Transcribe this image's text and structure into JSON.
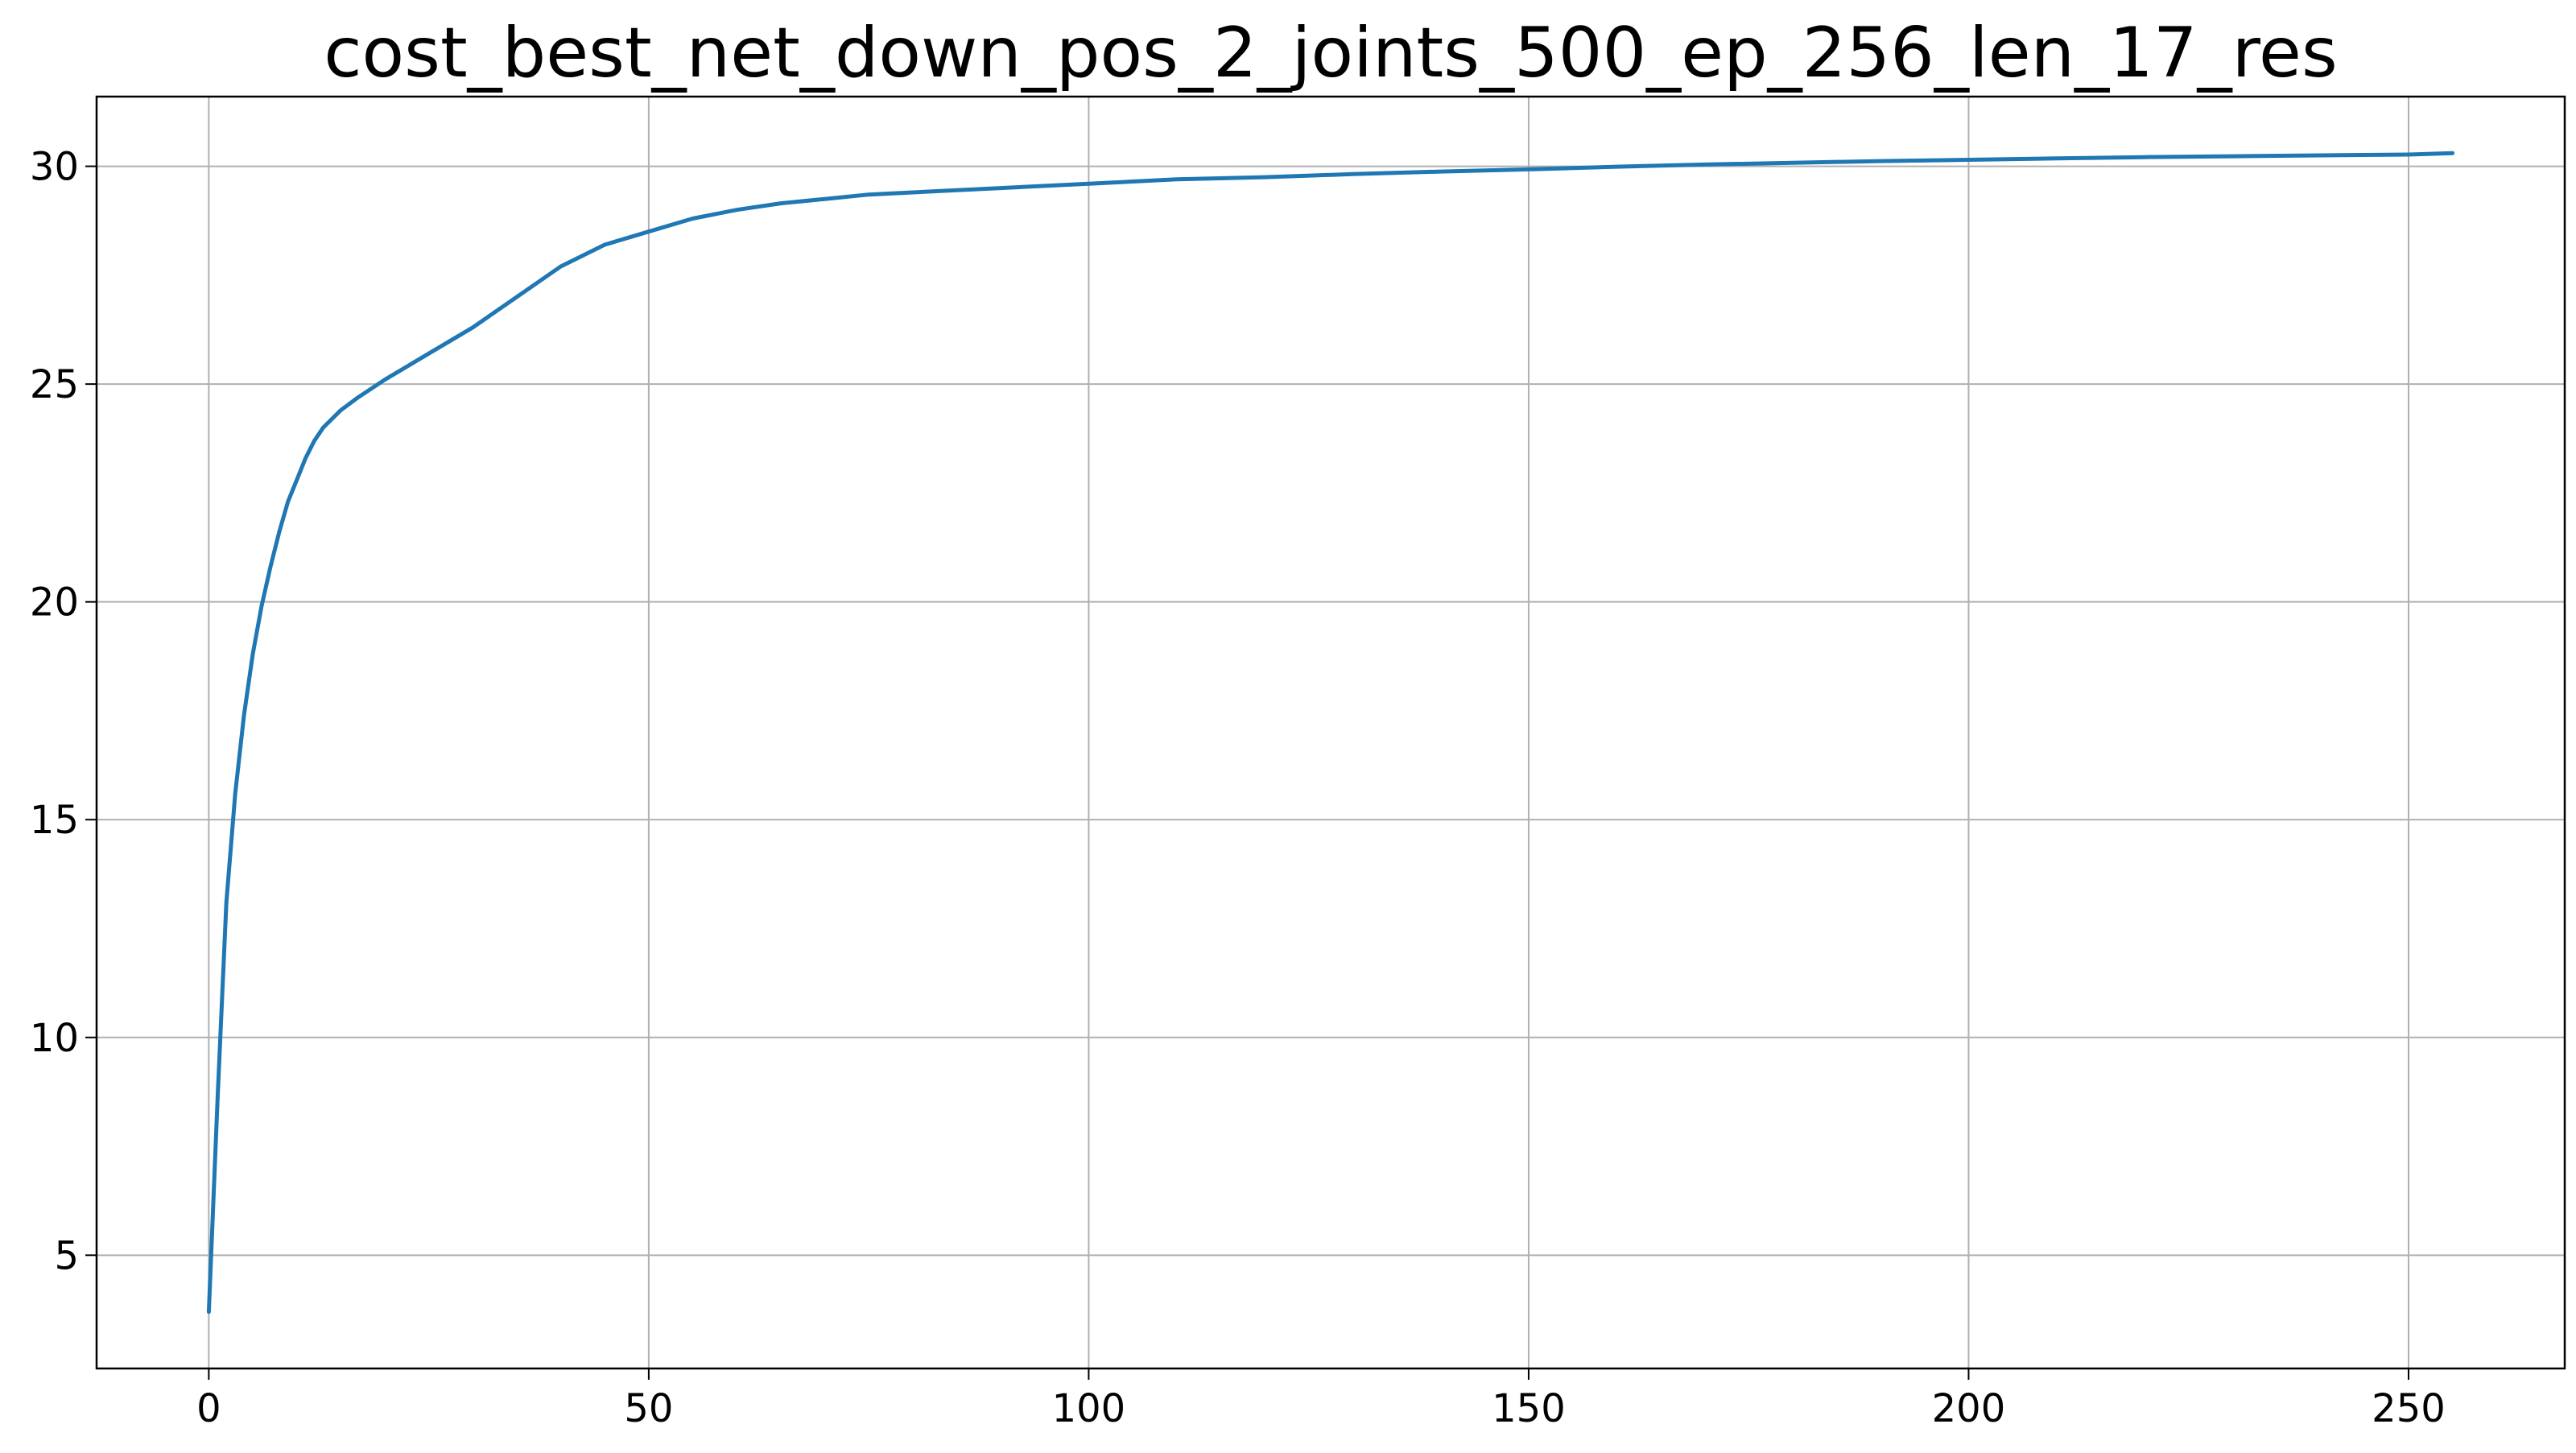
{
  "chart_data": {
    "type": "line",
    "title": "cost_best_net_down_pos_2_joints_500_ep_256_len_17_res",
    "xlabel": "",
    "ylabel": "",
    "xlim": [
      -12.75,
      267.75
    ],
    "ylim": [
      2.4,
      31.6
    ],
    "xticks": [
      0,
      50,
      100,
      150,
      200,
      250
    ],
    "yticks": [
      5,
      10,
      15,
      20,
      25,
      30
    ],
    "xtick_labels": [
      "0",
      "50",
      "100",
      "150",
      "200",
      "250"
    ],
    "ytick_labels": [
      "5",
      "10",
      "15",
      "20",
      "25",
      "30"
    ],
    "grid": true,
    "legend": "none",
    "line_color": "#1f77b4",
    "series": [
      {
        "x": [
          0,
          1,
          2,
          3,
          4,
          5,
          6,
          7,
          8,
          9,
          10,
          11,
          12,
          13,
          14,
          15,
          17,
          20,
          25,
          30,
          35,
          40,
          45,
          50,
          55,
          60,
          65,
          70,
          75,
          80,
          90,
          100,
          110,
          120,
          130,
          140,
          150,
          160,
          170,
          180,
          190,
          200,
          210,
          220,
          230,
          240,
          250,
          255
        ],
        "y": [
          3.7,
          8.6,
          13.1,
          15.6,
          17.4,
          18.8,
          19.9,
          20.8,
          21.6,
          22.3,
          22.8,
          23.3,
          23.7,
          24.0,
          24.2,
          24.4,
          24.7,
          25.1,
          25.7,
          26.3,
          27.0,
          27.7,
          28.2,
          28.5,
          28.8,
          29.0,
          29.15,
          29.25,
          29.35,
          29.4,
          29.5,
          29.6,
          29.7,
          29.75,
          29.82,
          29.88,
          29.93,
          29.99,
          30.04,
          30.08,
          30.12,
          30.15,
          30.18,
          30.21,
          30.23,
          30.25,
          30.27,
          30.3
        ]
      }
    ]
  }
}
